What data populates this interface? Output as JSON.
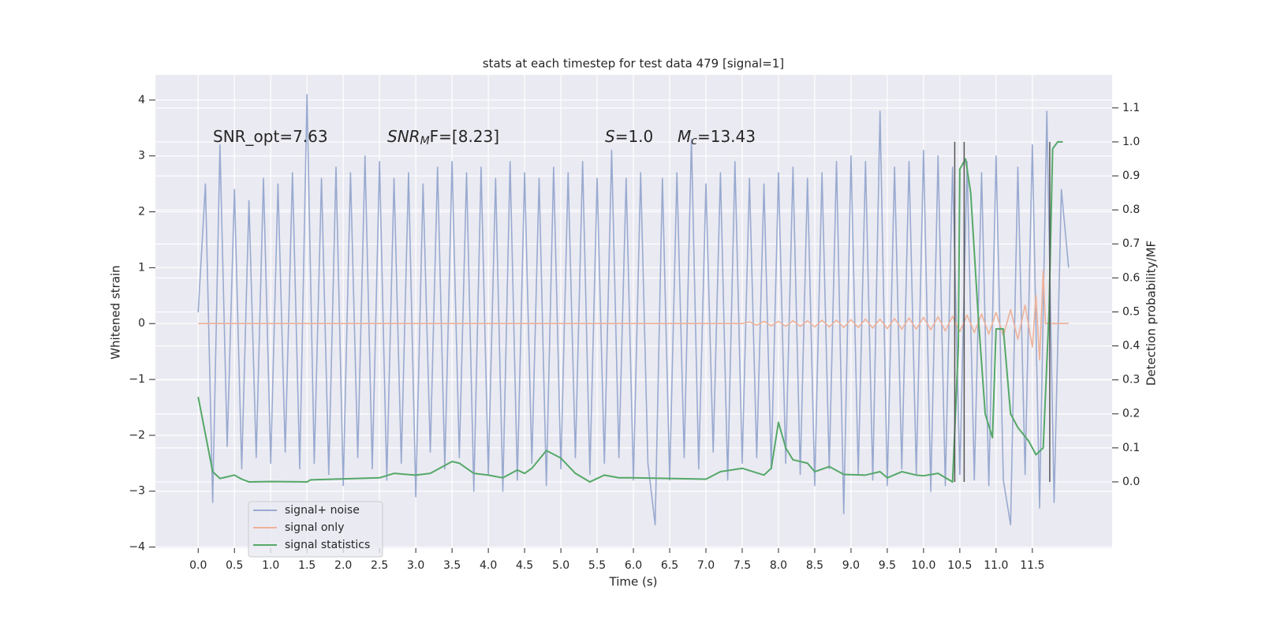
{
  "chart_data": {
    "type": "line",
    "title": "stats at each timestep for test data 479 [signal=1]",
    "x_label": "Time (s)",
    "y_label": "Whitened strain",
    "y2_label": "Detection probability/MF",
    "xlim": [
      -0.59,
      12.6
    ],
    "ylim": [
      -4.02,
      4.45
    ],
    "y2lim": [
      -0.195,
      1.197
    ],
    "xticks": [
      {
        "value": 0,
        "label": "0.0"
      },
      0.5,
      {
        "value": 1,
        "label": "1.0"
      },
      1.5,
      {
        "value": 2,
        "label": "2.0"
      },
      2.5,
      {
        "value": 3,
        "label": "3.0"
      },
      3.5,
      {
        "value": 4,
        "label": "4.0"
      },
      4.5,
      {
        "value": 5,
        "label": "5.0"
      },
      5.5,
      {
        "value": 6,
        "label": "6.0"
      },
      6.5,
      {
        "value": 7,
        "label": "7.0"
      },
      7.5,
      {
        "value": 8,
        "label": "8.0"
      },
      8.5,
      {
        "value": 9,
        "label": "9.0"
      },
      9.5,
      {
        "value": 10,
        "label": "10.0"
      },
      10.5,
      {
        "value": 11,
        "label": "11.0"
      },
      11.5
    ],
    "yticks": [
      {
        "value": -4,
        "label": "−4"
      },
      {
        "value": -3,
        "label": "−3"
      },
      {
        "value": -2,
        "label": "−2"
      },
      {
        "value": -1,
        "label": "−1"
      },
      0,
      1,
      2,
      3,
      4
    ],
    "y2ticks": [
      {
        "value": 0,
        "label": "0.0"
      },
      0.1,
      0.2,
      0.3,
      0.4,
      0.5,
      0.6,
      0.7,
      0.8,
      0.9,
      {
        "value": 1,
        "label": "1.0"
      },
      1.1
    ],
    "grid": true,
    "legend": "lower left",
    "series": [
      {
        "name": "signal+ noise",
        "color": "#99aad0",
        "x": [
          0,
          0.1,
          0.2,
          0.3,
          0.4,
          0.5,
          0.6,
          0.7,
          0.8,
          0.9,
          1.0,
          1.1,
          1.2,
          1.3,
          1.4,
          1.5,
          1.6,
          1.7,
          1.8,
          1.9,
          2.0,
          2.1,
          2.2,
          2.3,
          2.4,
          2.5,
          2.6,
          2.7,
          2.8,
          2.9,
          3.0,
          3.1,
          3.2,
          3.3,
          3.4,
          3.5,
          3.6,
          3.7,
          3.8,
          3.9,
          4.0,
          4.1,
          4.2,
          4.3,
          4.4,
          4.5,
          4.6,
          4.7,
          4.8,
          4.9,
          5.0,
          5.1,
          5.2,
          5.3,
          5.4,
          5.5,
          5.6,
          5.7,
          5.8,
          5.9,
          6.0,
          6.1,
          6.2,
          6.3,
          6.4,
          6.5,
          6.6,
          6.7,
          6.8,
          6.9,
          7.0,
          7.1,
          7.2,
          7.3,
          7.4,
          7.5,
          7.6,
          7.7,
          7.8,
          7.9,
          8.0,
          8.1,
          8.2,
          8.3,
          8.4,
          8.5,
          8.6,
          8.7,
          8.8,
          8.9,
          9.0,
          9.1,
          9.2,
          9.3,
          9.4,
          9.5,
          9.6,
          9.7,
          9.8,
          9.9,
          10.0,
          10.1,
          10.2,
          10.3,
          10.4,
          10.5,
          10.6,
          10.7,
          10.8,
          10.9,
          11.0,
          11.1,
          11.2,
          11.3,
          11.4,
          11.5,
          11.6,
          11.7,
          11.8,
          11.9,
          12.0
        ],
        "values": [
          0.2,
          2.5,
          -3.2,
          3.2,
          -2.2,
          2.4,
          -2.6,
          2.2,
          -2.4,
          2.6,
          -2.5,
          2.5,
          -2.3,
          2.7,
          -2.6,
          4.1,
          -2.5,
          2.6,
          -2.7,
          2.8,
          -2.9,
          2.7,
          -2.4,
          3.0,
          -2.6,
          2.9,
          -2.8,
          2.6,
          -2.5,
          2.7,
          -3.1,
          2.5,
          -2.3,
          2.8,
          -2.6,
          2.9,
          -2.4,
          2.7,
          -3.0,
          2.8,
          -2.7,
          2.6,
          -3.0,
          2.9,
          -2.8,
          2.7,
          -2.5,
          2.6,
          -2.9,
          2.8,
          -2.6,
          2.7,
          -2.4,
          2.9,
          -2.7,
          2.6,
          -2.5,
          3.1,
          -2.4,
          2.6,
          -2.8,
          2.7,
          -2.5,
          -3.6,
          2.6,
          -2.8,
          2.7,
          -2.4,
          3.3,
          -2.6,
          2.5,
          -2.3,
          2.7,
          -2.8,
          2.9,
          -2.5,
          2.6,
          -2.4,
          2.5,
          -2.6,
          2.7,
          -2.5,
          2.8,
          -2.7,
          2.6,
          -2.9,
          2.7,
          -2.6,
          2.9,
          -3.4,
          3.0,
          -2.7,
          2.9,
          -2.8,
          3.8,
          -2.9,
          2.8,
          -2.6,
          2.9,
          -2.7,
          3.1,
          -3.0,
          3.0,
          -2.9,
          2.8,
          -2.7,
          2.9,
          -2.8,
          2.7,
          -2.9,
          3.0,
          -2.8,
          -3.6,
          2.8,
          -2.7,
          3.2,
          -3.3,
          3.8,
          -3.2,
          2.4,
          1.0
        ]
      },
      {
        "name": "signal only",
        "color": "#eeb29a",
        "x": [
          0,
          7.5,
          7.6,
          7.7,
          7.8,
          7.9,
          8.0,
          8.1,
          8.2,
          8.3,
          8.4,
          8.5,
          8.6,
          8.7,
          8.8,
          8.9,
          9.0,
          9.1,
          9.2,
          9.3,
          9.4,
          9.5,
          9.6,
          9.7,
          9.8,
          9.9,
          10.0,
          10.1,
          10.2,
          10.3,
          10.4,
          10.5,
          10.6,
          10.7,
          10.8,
          10.9,
          11.0,
          11.1,
          11.2,
          11.3,
          11.4,
          11.5,
          11.55,
          11.6,
          11.65,
          11.68,
          12.0
        ],
        "values": [
          0,
          0,
          0.03,
          -0.03,
          0.04,
          -0.04,
          0.04,
          -0.05,
          0.05,
          -0.05,
          0.05,
          -0.06,
          0.06,
          -0.06,
          0.06,
          -0.07,
          0.07,
          -0.07,
          0.08,
          -0.08,
          0.08,
          -0.09,
          0.09,
          -0.1,
          0.1,
          -0.1,
          0.11,
          -0.11,
          0.12,
          -0.13,
          0.13,
          -0.14,
          0.15,
          -0.16,
          0.17,
          -0.19,
          0.2,
          -0.22,
          0.25,
          -0.28,
          0.33,
          -0.42,
          0.5,
          -0.65,
          0.95,
          0,
          0
        ]
      },
      {
        "name": "signal statistics",
        "color": "#55a868",
        "axis": "y2",
        "x": [
          0,
          0.1,
          0.2,
          0.3,
          0.4,
          0.5,
          0.6,
          0.7,
          1.0,
          1.5,
          1.55,
          2.0,
          2.5,
          2.7,
          3.0,
          3.2,
          3.5,
          3.6,
          3.8,
          4.0,
          4.2,
          4.4,
          4.5,
          4.6,
          4.8,
          5.0,
          5.2,
          5.4,
          5.6,
          5.8,
          6.0,
          6.5,
          7.0,
          7.2,
          7.5,
          7.8,
          7.9,
          8.0,
          8.1,
          8.2,
          8.4,
          8.5,
          8.7,
          8.9,
          9.2,
          9.4,
          9.5,
          9.7,
          9.9,
          10.0,
          10.2,
          10.4,
          10.48,
          10.5,
          10.58,
          10.65,
          10.75,
          10.85,
          10.95,
          11.0,
          11.1,
          11.2,
          11.3,
          11.45,
          11.55,
          11.65,
          11.73,
          11.78,
          11.85,
          11.92
        ],
        "values": [
          0.25,
          0.14,
          0.03,
          0.01,
          0.015,
          0.02,
          0.008,
          0.0,
          0.001,
          0.0,
          0.006,
          0.009,
          0.012,
          0.025,
          0.02,
          0.025,
          0.06,
          0.055,
          0.025,
          0.02,
          0.012,
          0.035,
          0.025,
          0.04,
          0.092,
          0.07,
          0.025,
          0.0,
          0.02,
          0.012,
          0.012,
          0.01,
          0.008,
          0.03,
          0.04,
          0.02,
          0.04,
          0.175,
          0.1,
          0.065,
          0.055,
          0.03,
          0.045,
          0.022,
          0.02,
          0.03,
          0.012,
          0.03,
          0.02,
          0.018,
          0.025,
          0.0,
          0.4,
          0.92,
          0.95,
          0.85,
          0.5,
          0.2,
          0.13,
          0.45,
          0.45,
          0.2,
          0.16,
          0.12,
          0.08,
          0.1,
          0.5,
          0.98,
          1.0,
          1.0
        ]
      }
    ],
    "vlines": {
      "x": [
        10.43,
        10.56,
        11.74
      ],
      "y2min": 0,
      "y2max": 1.0,
      "color": "#555555"
    },
    "annotations": [
      {
        "text": "SNR_opt=7.63"
      },
      {
        "base": "SNR",
        "sub": "M",
        "rest": "F=[8.23]"
      },
      {
        "base": "S",
        "rest": "=1.0"
      },
      {
        "base": "M",
        "sub": "c",
        "rest": "=13.43"
      }
    ]
  }
}
